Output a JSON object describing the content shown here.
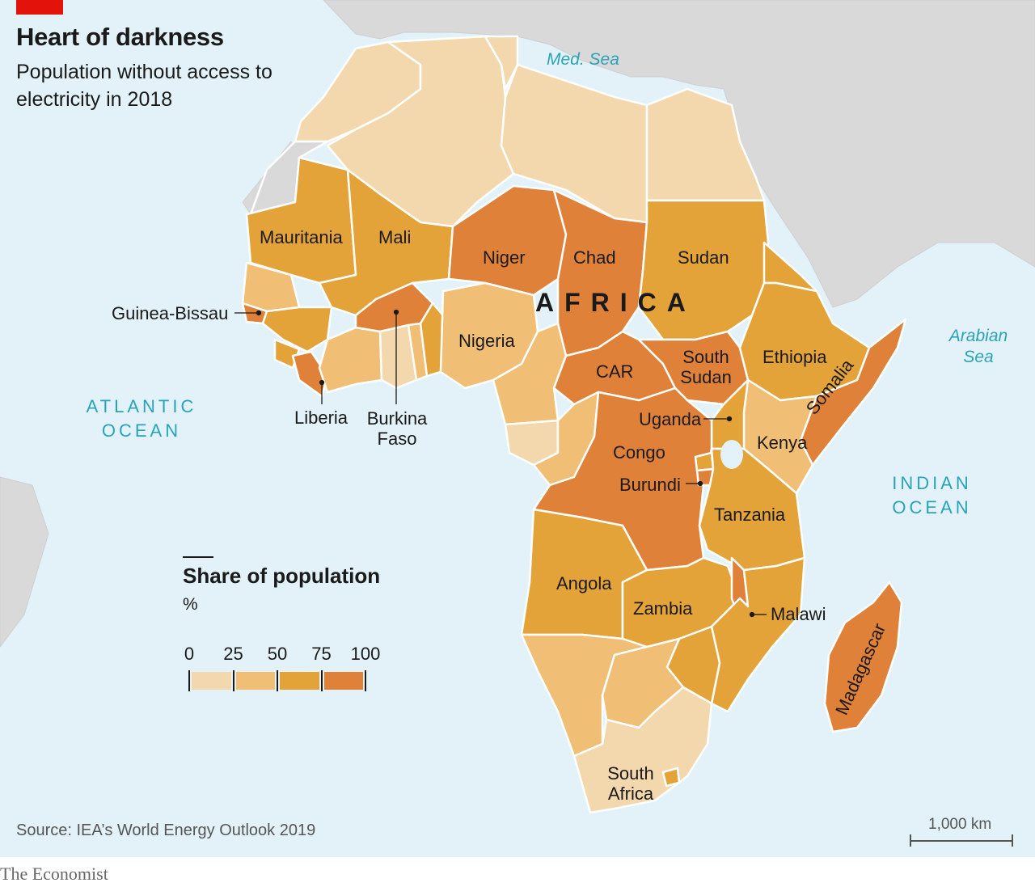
{
  "header": {
    "title": "Heart of darkness",
    "subtitle": "Population without access to electricity in 2018"
  },
  "source": "Source: IEA’s World Energy Outlook 2019",
  "footer": "The Economist",
  "continent_label": "AFRICA",
  "legend": {
    "title": "Share of population",
    "unit": "%",
    "ticks": [
      "0",
      "25",
      "50",
      "75",
      "100"
    ],
    "bins": [
      {
        "range": "0-25",
        "color": "#f4d8ad"
      },
      {
        "range": "25-50",
        "color": "#f0be74"
      },
      {
        "range": "50-75",
        "color": "#e3a338"
      },
      {
        "range": "75-100",
        "color": "#e08139"
      }
    ]
  },
  "scale_bar": "1,000 km",
  "water_labels": {
    "med_sea": "Med. Sea",
    "arabian_sea": "Arabian Sea",
    "atlantic": "ATLANTIC OCEAN",
    "indian": "INDIAN OCEAN"
  },
  "countries": {
    "mauritania": "Mauritania",
    "mali": "Mali",
    "niger": "Niger",
    "chad": "Chad",
    "sudan": "Sudan",
    "guinea_bissau": "Guinea-Bissau",
    "nigeria": "Nigeria",
    "liberia": "Liberia",
    "burkina_faso": "Burkina Faso",
    "car": "CAR",
    "south_sudan": "South Sudan",
    "ethiopia": "Ethiopia",
    "somalia": "Somalia",
    "uganda": "Uganda",
    "kenya": "Kenya",
    "congo": "Congo",
    "burundi": "Burundi",
    "tanzania": "Tanzania",
    "angola": "Angola",
    "zambia": "Zambia",
    "malawi": "Malawi",
    "madagascar": "Madagascar",
    "south_africa": "South Africa"
  },
  "colors": {
    "water": "#e3f2f9",
    "other_land": "#d9d9d9",
    "border": "#ffffff"
  }
}
